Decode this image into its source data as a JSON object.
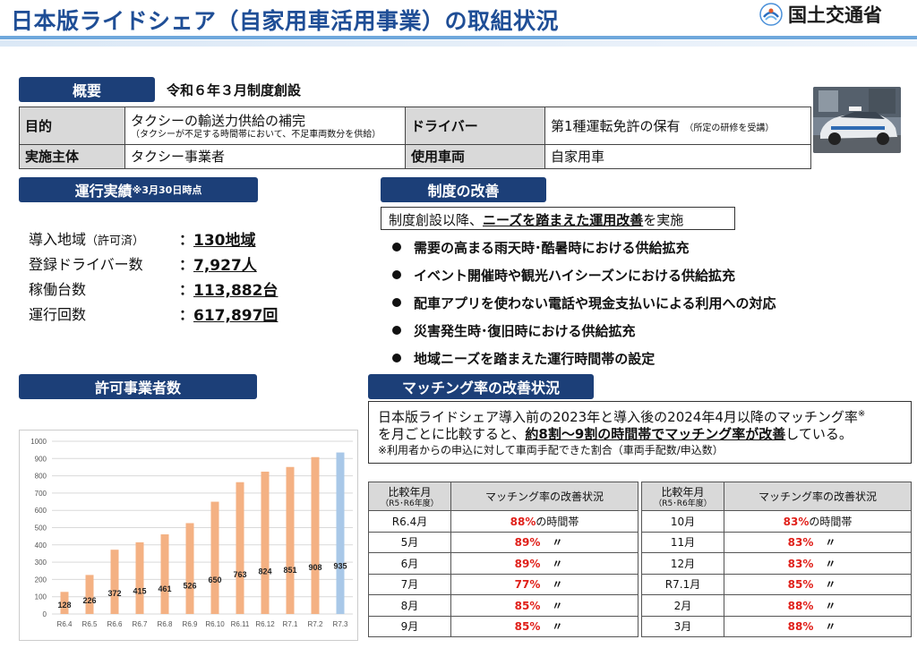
{
  "title": "日本版ライドシェア（自家用車活用事業）の取組状況",
  "ministry": "国土交通省",
  "colors": {
    "navy": "#1c3f78",
    "title_blue": "#1f4e96",
    "bar_orange": "#f4b183",
    "bar_blue": "#a9c8e8",
    "red": "#e0201a"
  },
  "overview": {
    "pill": "概要",
    "subtitle": "令和６年３月制度創設",
    "purpose_label": "目的",
    "purpose_text": "タクシーの輸送力供給の補完",
    "purpose_note": "（タクシーが不足する時間帯において、不足車両数分を供給）",
    "driver_label": "ドライバー",
    "driver_text": "第1種運転免許の保有",
    "driver_note": "（所定の研修を受講）",
    "operator_label": "実施主体",
    "operator_text": "タクシー事業者",
    "vehicle_label": "使用車両",
    "vehicle_text": "自家用車"
  },
  "results": {
    "pill": "運行実績",
    "pill_note": "※3月30日時点",
    "items": [
      {
        "label": "導入地域",
        "paren": "（許可済）",
        "sep": "：",
        "value": "130地域"
      },
      {
        "label": "登録ドライバー数",
        "paren": "",
        "sep": "：",
        "value": "7,927人"
      },
      {
        "label": "稼働台数",
        "paren": "",
        "sep": "：",
        "value": "113,882台"
      },
      {
        "label": "運行回数",
        "paren": "",
        "sep": "：",
        "value": "617,897回"
      }
    ]
  },
  "reform": {
    "pill": "制度の改善",
    "intro_pre": "制度創設以降、",
    "intro_em": "ニーズを踏まえた運用改善",
    "intro_post": "を実施",
    "bullets": [
      "需要の高まる雨天時･酷暑時における供給拡充",
      "イベント開催時や観光ハイシーズンにおける供給拡充",
      "配車アプリを使わない電話や現金支払いによる利用への対応",
      "災害発生時･復旧時における供給拡充",
      "地域ニーズを踏まえた運行時間帯の設定"
    ]
  },
  "permits": {
    "pill": "許可事業者数"
  },
  "matching": {
    "pill": "マッチング率の改善状況",
    "desc_line1": "日本版ライドシェア導入前の2023年と導入後の2024年4月以降のマッチング率",
    "desc_sup": "※",
    "desc_line2_pre": "を月ごとに比較すると、",
    "desc_line2_em": "約8割～9割の時間帯でマッチング率が改善",
    "desc_line2_post": "している。",
    "desc_note": "※利用者からの申込に対して車両手配できた割合（車両手配数/申込数）",
    "col1": "比較年月",
    "col1_sub": "（R5･R6年度）",
    "col2": "マッチング率の改善状況",
    "first_suffix": "の時間帯",
    "ditto": "〃",
    "left_rows": [
      {
        "month": "R6.4月",
        "pct": "88%"
      },
      {
        "month": "5月",
        "pct": "89%"
      },
      {
        "month": "6月",
        "pct": "89%"
      },
      {
        "month": "7月",
        "pct": "77%"
      },
      {
        "month": "8月",
        "pct": "85%"
      },
      {
        "month": "9月",
        "pct": "85%"
      }
    ],
    "right_rows": [
      {
        "month": "10月",
        "pct": "83%"
      },
      {
        "month": "11月",
        "pct": "83%"
      },
      {
        "month": "12月",
        "pct": "83%"
      },
      {
        "month": "R7.1月",
        "pct": "85%"
      },
      {
        "month": "2月",
        "pct": "88%"
      },
      {
        "month": "3月",
        "pct": "88%"
      }
    ]
  },
  "chart_data": {
    "type": "bar",
    "title": "",
    "xlabel": "",
    "ylabel": "",
    "ylim": [
      0,
      1000
    ],
    "yticks": [
      0,
      100,
      200,
      300,
      400,
      500,
      600,
      700,
      800,
      900,
      1000
    ],
    "grid": true,
    "categories": [
      "R6.4",
      "R6.5",
      "R6.6",
      "R6.7",
      "R6.8",
      "R6.9",
      "R6.10",
      "R6.11",
      "R6.12",
      "R7.1",
      "R7.2",
      "R7.3"
    ],
    "values": [
      128,
      226,
      372,
      415,
      461,
      526,
      650,
      763,
      824,
      851,
      908,
      935
    ],
    "highlight_last": true
  }
}
